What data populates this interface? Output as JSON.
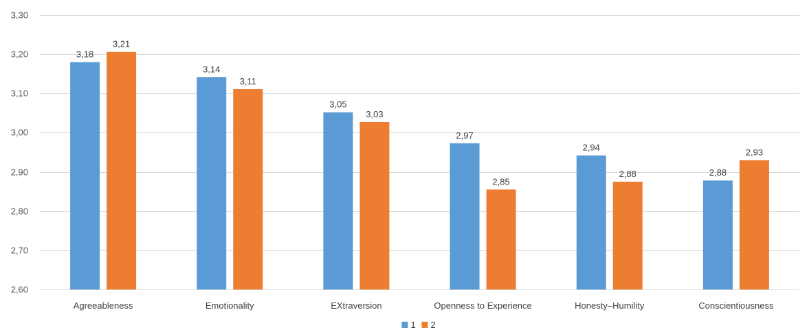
{
  "chart_data": {
    "type": "bar",
    "categories": [
      "Agreeableness",
      "Emotionality",
      "EXtraversion",
      "Openness to Experience",
      "Honesty–Humility",
      "Conscientiousness"
    ],
    "series": [
      {
        "name": "1",
        "color": "#5B9BD5",
        "values": [
          3.18,
          3.142,
          3.052,
          2.973,
          2.942,
          2.878
        ],
        "labels": [
          "3,18",
          "3,14",
          "3,05",
          "2,97",
          "2,94",
          "2,88"
        ]
      },
      {
        "name": "2",
        "color": "#ED7D31",
        "values": [
          3.206,
          3.111,
          3.027,
          2.855,
          2.875,
          2.93
        ],
        "labels": [
          "3,21",
          "3,11",
          "3,03",
          "2,85",
          "2,88",
          "2,93"
        ]
      }
    ],
    "ylim": [
      2.6,
      3.3
    ],
    "yticks": [
      "2,60",
      "2,70",
      "2,80",
      "2,90",
      "3,00",
      "3,10",
      "3,20",
      "3,30"
    ],
    "grid": true,
    "legend": "bottom-center",
    "title": "",
    "xlabel": "",
    "ylabel": ""
  }
}
